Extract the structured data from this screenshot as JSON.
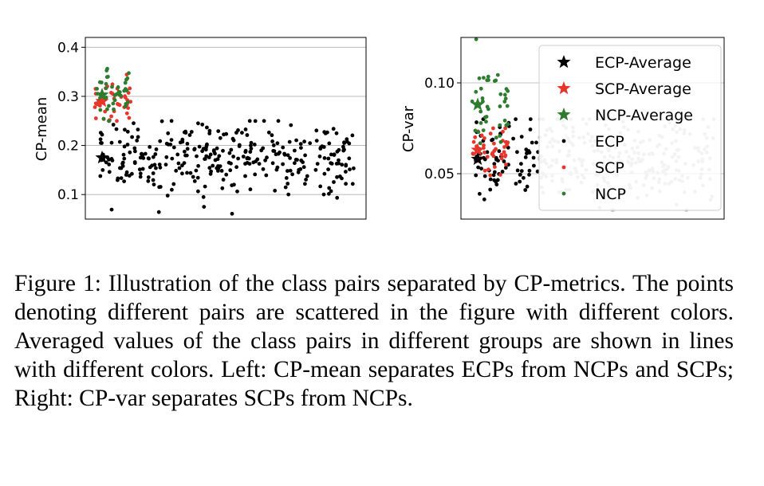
{
  "figure": {
    "caption": "Figure 1: Illustration of the class pairs separated by CP-metrics. The points denoting different pairs are scattered in the figure with different colors. Averaged values of the class pairs in different groups are shown in lines with different colors. Left: CP-mean separates ECPs from NCPs and SCPs; Right: CP-var separates SCPs from NCPs."
  },
  "colors": {
    "ECP": "#000000",
    "SCP": "#e8352a",
    "NCP": "#2e7d2e",
    "ECP_faded": "#c2c2c2"
  },
  "chart_data": [
    {
      "type": "scatter",
      "title": "",
      "xlabel": "",
      "ylabel": "CP-mean",
      "ylim": [
        0.05,
        0.42
      ],
      "yticks": [
        0.1,
        0.2,
        0.3,
        0.4
      ],
      "ytick_labels": [
        "0.1",
        "0.2",
        "0.3",
        "0.4"
      ],
      "grid": "horizontal",
      "legend": null,
      "series": [
        {
          "name": "ECP",
          "marker": "dot",
          "color": "#000000",
          "points_shown": "about 330 pairs",
          "y_range": [
            0.06,
            0.25
          ],
          "y_mean": 0.175
        },
        {
          "name": "SCP",
          "marker": "dot",
          "color": "#e8352a",
          "points_shown": "about 40 pairs",
          "y_range": [
            0.25,
            0.4
          ],
          "y_mean": 0.29
        },
        {
          "name": "NCP",
          "marker": "dot",
          "color": "#2e7d2e",
          "points_shown": "about 40 pairs",
          "y_range": [
            0.25,
            0.4
          ],
          "y_mean": 0.3
        },
        {
          "name": "ECP-Average",
          "marker": "star",
          "color": "#000000",
          "y": 0.175
        },
        {
          "name": "SCP-Average",
          "marker": "star",
          "color": "#e8352a",
          "y": 0.29
        },
        {
          "name": "NCP-Average",
          "marker": "star",
          "color": "#2e7d2e",
          "y": 0.303
        }
      ]
    },
    {
      "type": "scatter",
      "title": "",
      "xlabel": "",
      "ylabel": "CP-var",
      "ylim": [
        0.025,
        0.125
      ],
      "yticks": [
        0.05,
        0.1
      ],
      "ytick_labels": [
        "0.05",
        "0.10"
      ],
      "grid": "horizontal",
      "legend": {
        "placement": "top-right",
        "entries": [
          {
            "label": "ECP-Average",
            "marker": "star",
            "color": "#000000"
          },
          {
            "label": "SCP-Average",
            "marker": "star",
            "color": "#e8352a"
          },
          {
            "label": "NCP-Average",
            "marker": "star",
            "color": "#2e7d2e"
          },
          {
            "label": "ECP",
            "marker": "dot",
            "color": "#000000"
          },
          {
            "label": "SCP",
            "marker": "dot",
            "color": "#e8352a"
          },
          {
            "label": "NCP",
            "marker": "dot",
            "color": "#2e7d2e"
          }
        ]
      },
      "series": [
        {
          "name": "ECP",
          "marker": "dot",
          "color": "#000000",
          "points_shown": "about 330 pairs",
          "y_range": [
            0.03,
            0.08
          ],
          "y_mean": 0.058
        },
        {
          "name": "SCP",
          "marker": "dot",
          "color": "#e8352a",
          "points_shown": "about 40 pairs",
          "y_range": [
            0.045,
            0.075
          ],
          "y_mean": 0.063
        },
        {
          "name": "NCP",
          "marker": "dot",
          "color": "#2e7d2e",
          "points_shown": "about 40 pairs",
          "y_range": [
            0.06,
            0.125
          ],
          "y_mean": 0.088
        },
        {
          "name": "ECP-Average",
          "marker": "star",
          "color": "#000000",
          "y": 0.058
        },
        {
          "name": "SCP-Average",
          "marker": "star",
          "color": "#e8352a",
          "y": 0.063
        },
        {
          "name": "NCP-Average",
          "marker": "star",
          "color": "#2e7d2e",
          "y": 0.088
        }
      ]
    }
  ]
}
